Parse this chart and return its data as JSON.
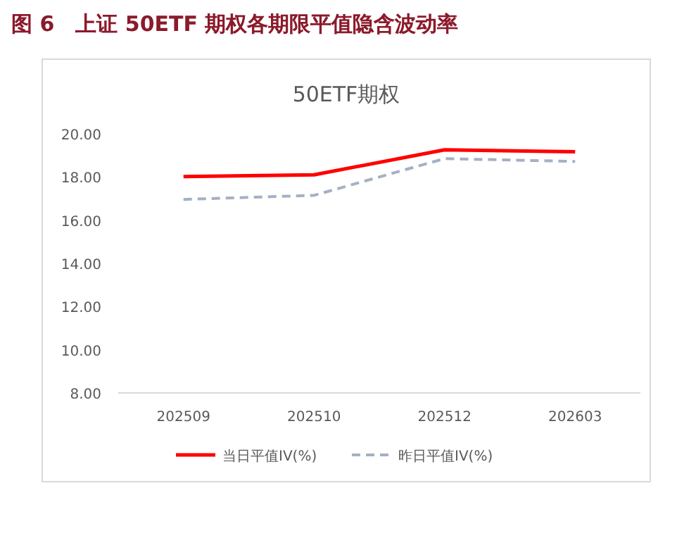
{
  "chart_data": {
    "type": "line",
    "title": "图 6　上证 50ETF 期权各期限平值隐含波动率",
    "subtitle": "50ETF期权",
    "categories": [
      "202509",
      "202510",
      "202512",
      "202603"
    ],
    "series": [
      {
        "name": "当日平值IV(%)",
        "color": "#ff0000",
        "line_style": "solid",
        "values": [
          18.02,
          18.1,
          19.26,
          19.17
        ]
      },
      {
        "name": "昨日平值IV(%)",
        "color": "#a5b0c4",
        "line_style": "dashed",
        "values": [
          16.96,
          17.15,
          18.85,
          18.72
        ]
      }
    ],
    "ylim": [
      8,
      20
    ],
    "yticks": [
      {
        "value": 8,
        "label": "8.00"
      },
      {
        "value": 10,
        "label": "10.00"
      },
      {
        "value": 12,
        "label": "12.00"
      },
      {
        "value": 14,
        "label": "14.00"
      },
      {
        "value": 16,
        "label": "16.00"
      },
      {
        "value": 18,
        "label": "18.00"
      },
      {
        "value": 20,
        "label": "20.00"
      }
    ],
    "grid": false,
    "legend": "bottom",
    "marker": "none"
  }
}
